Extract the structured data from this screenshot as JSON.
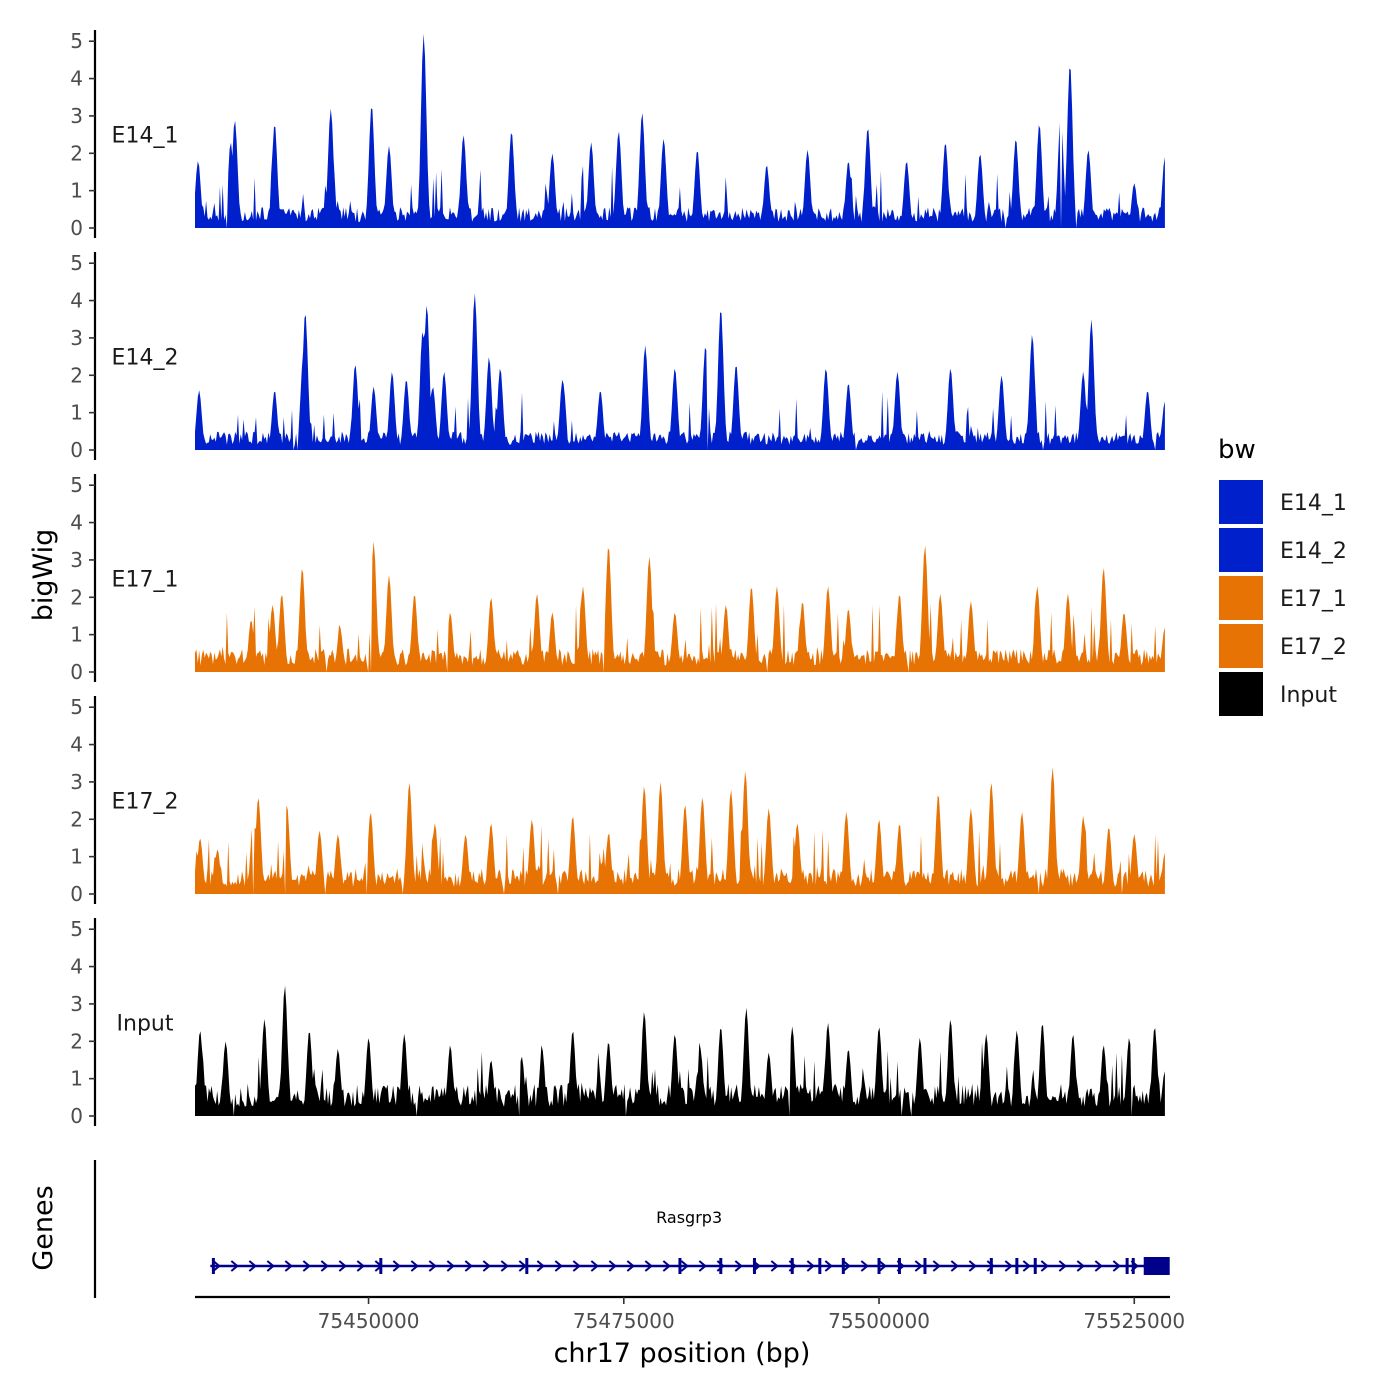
{
  "chart_data": {
    "type": "area",
    "title": "",
    "xlabel": "chr17 position (bp)",
    "ylabel": "bigWig",
    "gene_panel_label": "Genes",
    "xlim": [
      75433000,
      75528500
    ],
    "x_ticks": [
      75450000,
      75475000,
      75500000,
      75525000
    ],
    "x_tick_labels": [
      "75450000",
      "75475000",
      "75500000",
      "75525000"
    ],
    "ylim": [
      0,
      5.3
    ],
    "y_ticks": [
      0,
      1,
      2,
      3,
      4,
      5
    ],
    "y_tick_labels": [
      "0",
      "1",
      "2",
      "3",
      "4",
      "5"
    ],
    "legend": {
      "title": "bw",
      "position": "right",
      "entries": [
        {
          "name": "E14_1",
          "color": "#0020CC"
        },
        {
          "name": "E14_2",
          "color": "#0020CC"
        },
        {
          "name": "E17_1",
          "color": "#E87305"
        },
        {
          "name": "E17_2",
          "color": "#E87305"
        },
        {
          "name": "Input",
          "color": "#000000"
        }
      ]
    },
    "series": [
      {
        "name": "E14_1",
        "color": "#0020CC",
        "x_start": 75433000,
        "x_end": 75528000,
        "peaks": [
          [
            75433300,
            1.8
          ],
          [
            75436500,
            2.3
          ],
          [
            75436900,
            2.9
          ],
          [
            75440800,
            2.8
          ],
          [
            75446300,
            3.2
          ],
          [
            75450300,
            3.3
          ],
          [
            75452000,
            2.2
          ],
          [
            75455400,
            5.2
          ],
          [
            75459300,
            2.5
          ],
          [
            75464000,
            2.6
          ],
          [
            75468000,
            2.0
          ],
          [
            75471800,
            2.3
          ],
          [
            75474500,
            2.6
          ],
          [
            75476800,
            3.1
          ],
          [
            75478900,
            2.4
          ],
          [
            75482200,
            2.1
          ],
          [
            75489000,
            1.7
          ],
          [
            75493000,
            2.1
          ],
          [
            75497000,
            1.8
          ],
          [
            75498900,
            2.7
          ],
          [
            75502700,
            1.8
          ],
          [
            75506500,
            2.3
          ],
          [
            75509900,
            2.0
          ],
          [
            75513400,
            2.4
          ],
          [
            75515700,
            2.8
          ],
          [
            75517800,
            3.1
          ],
          [
            75518700,
            4.4
          ],
          [
            75520500,
            2.1
          ],
          [
            75525000,
            1.2
          ],
          [
            75528000,
            1.9
          ]
        ],
        "baseline": 0.45
      },
      {
        "name": "E14_2",
        "color": "#0020CC",
        "x_start": 75433000,
        "x_end": 75528000,
        "peaks": [
          [
            75433400,
            1.6
          ],
          [
            75440800,
            1.6
          ],
          [
            75443600,
            2.5
          ],
          [
            75443800,
            3.7
          ],
          [
            75448700,
            2.3
          ],
          [
            75450500,
            1.7
          ],
          [
            75452300,
            2.1
          ],
          [
            75453700,
            1.9
          ],
          [
            75455300,
            3.2
          ],
          [
            75455700,
            3.9
          ],
          [
            75456300,
            1.7
          ],
          [
            75457400,
            2.1
          ],
          [
            75460400,
            4.2
          ],
          [
            75461800,
            2.5
          ],
          [
            75462900,
            2.2
          ],
          [
            75469000,
            1.9
          ],
          [
            75472700,
            1.6
          ],
          [
            75477100,
            2.8
          ],
          [
            75480000,
            2.2
          ],
          [
            75483000,
            2.8
          ],
          [
            75484500,
            3.8
          ],
          [
            75486000,
            2.3
          ],
          [
            75494800,
            2.2
          ],
          [
            75497000,
            1.8
          ],
          [
            75501800,
            2.1
          ],
          [
            75507000,
            2.2
          ],
          [
            75512000,
            2.0
          ],
          [
            75515000,
            3.1
          ],
          [
            75520000,
            2.1
          ],
          [
            75520800,
            3.5
          ],
          [
            75526300,
            1.6
          ],
          [
            75528000,
            1.3
          ]
        ],
        "baseline": 0.4
      },
      {
        "name": "E17_1",
        "color": "#E87305",
        "x_start": 75433000,
        "x_end": 75528000,
        "peaks": [
          [
            75438500,
            1.4
          ],
          [
            75440600,
            1.8
          ],
          [
            75441500,
            2.1
          ],
          [
            75443500,
            2.8
          ],
          [
            75447200,
            1.2
          ],
          [
            75450500,
            3.5
          ],
          [
            75452000,
            2.6
          ],
          [
            75454500,
            2.1
          ],
          [
            75458000,
            1.6
          ],
          [
            75462000,
            2.0
          ],
          [
            75466500,
            2.1
          ],
          [
            75468000,
            1.6
          ],
          [
            75471000,
            2.3
          ],
          [
            75473500,
            3.4
          ],
          [
            75477500,
            3.1
          ],
          [
            75480000,
            1.6
          ],
          [
            75485000,
            1.8
          ],
          [
            75487500,
            2.3
          ],
          [
            75490000,
            2.3
          ],
          [
            75492500,
            1.9
          ],
          [
            75495000,
            2.3
          ],
          [
            75497000,
            1.7
          ],
          [
            75502000,
            2.1
          ],
          [
            75504500,
            3.4
          ],
          [
            75506000,
            2.1
          ],
          [
            75509000,
            1.9
          ],
          [
            75515500,
            2.3
          ],
          [
            75518500,
            2.1
          ],
          [
            75522000,
            2.8
          ],
          [
            75524000,
            1.6
          ],
          [
            75528000,
            1.2
          ]
        ],
        "baseline": 0.5
      },
      {
        "name": "E17_2",
        "color": "#E87305",
        "x_start": 75433000,
        "x_end": 75528000,
        "peaks": [
          [
            75433500,
            1.5
          ],
          [
            75435200,
            1.2
          ],
          [
            75438700,
            2.0
          ],
          [
            75439200,
            2.6
          ],
          [
            75442000,
            2.4
          ],
          [
            75445200,
            1.7
          ],
          [
            75447000,
            1.6
          ],
          [
            75450200,
            2.2
          ],
          [
            75454000,
            3.0
          ],
          [
            75456500,
            1.9
          ],
          [
            75459500,
            1.6
          ],
          [
            75462000,
            1.9
          ],
          [
            75466000,
            2.0
          ],
          [
            75470000,
            2.1
          ],
          [
            75473500,
            1.6
          ],
          [
            75477000,
            2.9
          ],
          [
            75478600,
            3.0
          ],
          [
            75481000,
            2.4
          ],
          [
            75482700,
            2.6
          ],
          [
            75485500,
            2.8
          ],
          [
            75486900,
            3.3
          ],
          [
            75489200,
            2.3
          ],
          [
            75492000,
            1.9
          ],
          [
            75496800,
            2.2
          ],
          [
            75500000,
            2.0
          ],
          [
            75502000,
            1.9
          ],
          [
            75505800,
            2.7
          ],
          [
            75509000,
            2.3
          ],
          [
            75511000,
            3.0
          ],
          [
            75514000,
            2.2
          ],
          [
            75517000,
            3.4
          ],
          [
            75520000,
            2.1
          ],
          [
            75522500,
            1.8
          ],
          [
            75525000,
            1.6
          ],
          [
            75528000,
            1.1
          ]
        ],
        "baseline": 0.55
      },
      {
        "name": "Input",
        "color": "#000000",
        "x_start": 75433000,
        "x_end": 75528000,
        "peaks": [
          [
            75433500,
            2.3
          ],
          [
            75436000,
            2.0
          ],
          [
            75439800,
            2.6
          ],
          [
            75441800,
            3.5
          ],
          [
            75444200,
            2.3
          ],
          [
            75447000,
            1.8
          ],
          [
            75450000,
            2.1
          ],
          [
            75453500,
            2.2
          ],
          [
            75458000,
            1.9
          ],
          [
            75462000,
            1.5
          ],
          [
            75465000,
            1.6
          ],
          [
            75467000,
            1.8
          ],
          [
            75470000,
            2.3
          ],
          [
            75473500,
            2.0
          ],
          [
            75477000,
            2.8
          ],
          [
            75480000,
            2.2
          ],
          [
            75482500,
            1.8
          ],
          [
            75484500,
            2.4
          ],
          [
            75487000,
            2.9
          ],
          [
            75489200,
            1.7
          ],
          [
            75491500,
            2.4
          ],
          [
            75495000,
            2.5
          ],
          [
            75497000,
            1.8
          ],
          [
            75500000,
            2.4
          ],
          [
            75504000,
            2.1
          ],
          [
            75507000,
            2.6
          ],
          [
            75510500,
            2.2
          ],
          [
            75513500,
            2.3
          ],
          [
            75516000,
            2.5
          ],
          [
            75519000,
            2.2
          ],
          [
            75522000,
            1.9
          ],
          [
            75524500,
            2.1
          ],
          [
            75527000,
            2.4
          ],
          [
            75528000,
            1.2
          ]
        ],
        "baseline": 0.7
      }
    ],
    "genes": [
      {
        "name": "Rasgrp3",
        "strand": "+",
        "color": "#00008B",
        "start": 75434500,
        "end": 75528300,
        "exons": [
          75434800,
          75451200,
          75465500,
          75480500,
          75484500,
          75487800,
          75491500,
          75494200,
          75496500,
          75500000,
          75502000,
          75504500,
          75511000,
          75513500,
          75515300,
          75524300,
          75524900,
          75527200
        ]
      }
    ]
  }
}
